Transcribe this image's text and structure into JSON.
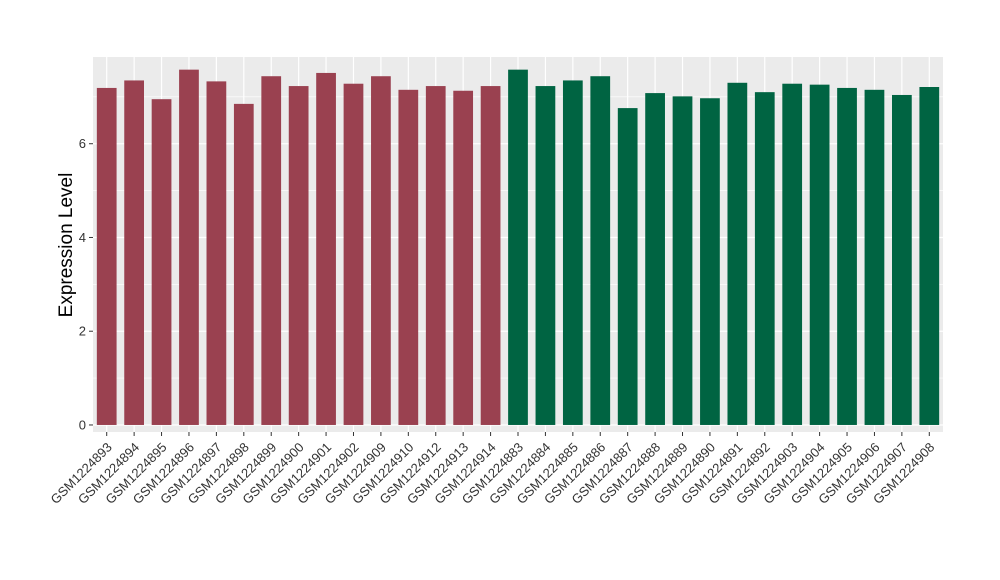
{
  "chart_data": {
    "type": "bar",
    "xlabel": "",
    "ylabel": "Expression Level",
    "ylim": [
      -0.15,
      7.85
    ],
    "yticks": [
      0,
      2,
      4,
      6
    ],
    "grid": true,
    "legend": "none",
    "colors": {
      "group1": "#9a4150",
      "group2": "#006442",
      "panel": "#ebebeb",
      "gridline": "#ffffff"
    },
    "categories": [
      "GSM1224893",
      "GSM1224894",
      "GSM1224895",
      "GSM1224896",
      "GSM1224897",
      "GSM1224898",
      "GSM1224899",
      "GSM1224900",
      "GSM1224901",
      "GSM1224902",
      "GSM1224909",
      "GSM1224910",
      "GSM1224912",
      "GSM1224913",
      "GSM1224914",
      "GSM1224883",
      "GSM1224884",
      "GSM1224885",
      "GSM1224886",
      "GSM1224887",
      "GSM1224888",
      "GSM1224889",
      "GSM1224890",
      "GSM1224891",
      "GSM1224892",
      "GSM1224903",
      "GSM1224904",
      "GSM1224905",
      "GSM1224906",
      "GSM1224907",
      "GSM1224908"
    ],
    "values": [
      7.19,
      7.35,
      6.95,
      7.58,
      7.33,
      6.85,
      7.44,
      7.23,
      7.51,
      7.28,
      7.44,
      7.15,
      7.23,
      7.13,
      7.23,
      7.58,
      7.23,
      7.35,
      7.44,
      6.76,
      7.08,
      7.01,
      6.97,
      7.3,
      7.1,
      7.28,
      7.26,
      7.19,
      7.15,
      7.04,
      7.21
    ],
    "groups": [
      "group1",
      "group1",
      "group1",
      "group1",
      "group1",
      "group1",
      "group1",
      "group1",
      "group1",
      "group1",
      "group1",
      "group1",
      "group1",
      "group1",
      "group1",
      "group2",
      "group2",
      "group2",
      "group2",
      "group2",
      "group2",
      "group2",
      "group2",
      "group2",
      "group2",
      "group2",
      "group2",
      "group2",
      "group2",
      "group2",
      "group2"
    ]
  }
}
